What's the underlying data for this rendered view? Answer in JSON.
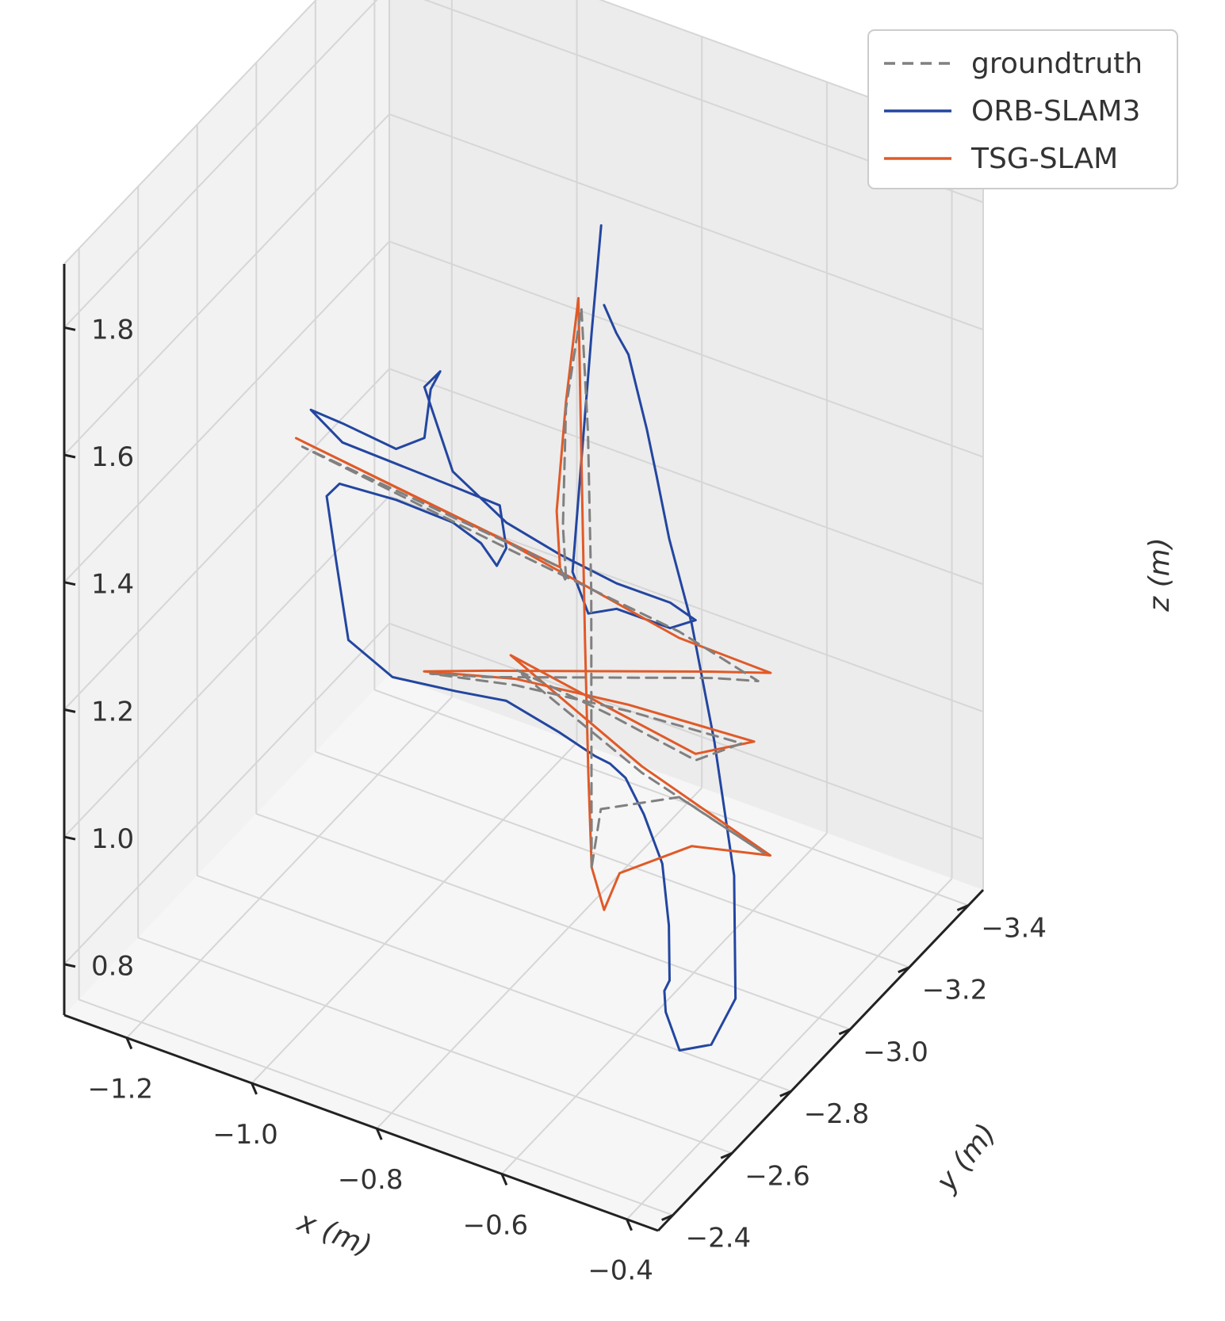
{
  "chart_data": {
    "type": "line",
    "projection": "3d",
    "title": "",
    "xlabel": "x (m)",
    "ylabel": "y (m)",
    "zlabel": "z (m)",
    "xlim": [
      -1.3,
      -0.35
    ],
    "ylim": [
      -3.45,
      -2.35
    ],
    "zlim": [
      0.72,
      1.9
    ],
    "x_ticks": [
      "−1.2",
      "−1.0",
      "−0.8",
      "−0.6",
      "−0.4"
    ],
    "y_ticks": [
      "−2.4",
      "−2.6",
      "−2.8",
      "−3.0",
      "−3.2",
      "−3.4"
    ],
    "z_ticks": [
      "1.8",
      "1.6",
      "1.4",
      "1.2",
      "1.0",
      "0.8"
    ],
    "grid": true,
    "legend_position": "top-right",
    "colors": {
      "groundtruth": "#808080",
      "orb": "#2346a0",
      "tsg": "#e05a28",
      "pane_left": "#ececec",
      "pane_back": "#f2f2f2",
      "pane_floor": "#f6f6f6",
      "grid": "#d6d6d6"
    },
    "series": [
      {
        "name": "groundtruth",
        "style": "dashed",
        "points": [
          [
            -0.74,
            -2.95,
            0.86
          ],
          [
            -0.745,
            -2.96,
            1.05
          ],
          [
            -0.75,
            -2.97,
            1.28
          ],
          [
            -0.76,
            -2.98,
            1.52
          ],
          [
            -0.78,
            -3.0,
            1.7
          ],
          [
            -0.8,
            -2.99,
            1.54
          ],
          [
            -0.8,
            -2.98,
            1.36
          ],
          [
            -0.79,
            -2.97,
            1.28
          ],
          [
            -0.8,
            -2.97,
            1.3
          ],
          [
            -1.25,
            -3.05,
            1.29
          ],
          [
            -0.9,
            -3.0,
            1.28
          ],
          [
            -0.6,
            -2.95,
            1.28
          ],
          [
            -0.45,
            -2.9,
            1.28
          ],
          [
            -0.55,
            -2.96,
            1.22
          ],
          [
            -0.75,
            -3.0,
            1.13
          ],
          [
            -0.95,
            -3.04,
            1.04
          ],
          [
            -1.05,
            -3.06,
            1.0
          ],
          [
            -0.9,
            -3.03,
            1.05
          ],
          [
            -0.7,
            -2.99,
            1.1
          ],
          [
            -0.5,
            -2.95,
            1.14
          ],
          [
            -0.55,
            -2.9,
            1.12
          ],
          [
            -0.7,
            -2.92,
            1.13
          ],
          [
            -0.85,
            -2.93,
            1.14
          ],
          [
            -0.65,
            -2.93,
            1.05
          ],
          [
            -0.45,
            -2.92,
            1.0
          ],
          [
            -0.6,
            -2.95,
            1.02
          ],
          [
            -0.73,
            -2.96,
            0.95
          ],
          [
            -0.74,
            -2.95,
            0.86
          ]
        ]
      },
      {
        "name": "ORB-SLAM3",
        "style": "solid",
        "points": [
          [
            -0.72,
            -2.95,
            1.75
          ],
          [
            -0.71,
            -2.97,
            1.7
          ],
          [
            -0.7,
            -2.99,
            1.66
          ],
          [
            -0.69,
            -3.0,
            1.6
          ],
          [
            -0.68,
            -3.01,
            1.54
          ],
          [
            -0.66,
            -3.0,
            1.48
          ],
          [
            -0.63,
            -2.98,
            1.4
          ],
          [
            -0.58,
            -2.95,
            1.3
          ],
          [
            -0.52,
            -2.9,
            1.16
          ],
          [
            -0.46,
            -2.84,
            1.0
          ],
          [
            -0.42,
            -2.76,
            0.86
          ],
          [
            -0.44,
            -2.72,
            0.8
          ],
          [
            -0.5,
            -2.74,
            0.76
          ],
          [
            -0.56,
            -2.82,
            0.76
          ],
          [
            -0.6,
            -2.9,
            0.74
          ],
          [
            -0.62,
            -2.96,
            0.72
          ],
          [
            -0.64,
            -3.0,
            0.78
          ],
          [
            -0.66,
            -3.02,
            0.86
          ],
          [
            -0.68,
            -3.0,
            0.94
          ],
          [
            -0.7,
            -2.98,
            1.0
          ],
          [
            -0.72,
            -2.97,
            1.02
          ],
          [
            -0.74,
            -2.96,
            1.03
          ],
          [
            -0.8,
            -2.97,
            1.04
          ],
          [
            -0.9,
            -3.0,
            1.04
          ],
          [
            -1.0,
            -3.04,
            1.0
          ],
          [
            -1.12,
            -3.08,
            0.96
          ],
          [
            -1.2,
            -3.1,
            0.98
          ],
          [
            -1.22,
            -3.1,
            1.1
          ],
          [
            -1.23,
            -3.09,
            1.2
          ],
          [
            -1.2,
            -3.07,
            1.24
          ],
          [
            -1.1,
            -3.05,
            1.26
          ],
          [
            -1.0,
            -3.03,
            1.27
          ],
          [
            -0.95,
            -3.02,
            1.26
          ],
          [
            -0.92,
            -3.01,
            1.24
          ],
          [
            -0.9,
            -3.0,
            1.28
          ],
          [
            -0.92,
            -3.02,
            1.33
          ],
          [
            -1.0,
            -3.04,
            1.32
          ],
          [
            -1.1,
            -3.06,
            1.31
          ],
          [
            -1.2,
            -3.08,
            1.3
          ],
          [
            -1.26,
            -3.1,
            1.32
          ],
          [
            -1.2,
            -3.08,
            1.33
          ],
          [
            -1.1,
            -3.05,
            1.34
          ],
          [
            -1.05,
            -3.04,
            1.38
          ],
          [
            -1.04,
            -3.04,
            1.46
          ],
          [
            -1.02,
            -3.03,
            1.5
          ],
          [
            -1.05,
            -3.04,
            1.46
          ],
          [
            -1.0,
            -3.03,
            1.35
          ],
          [
            -0.9,
            -3.0,
            1.32
          ],
          [
            -0.8,
            -2.97,
            1.32
          ],
          [
            -0.7,
            -2.95,
            1.32
          ],
          [
            -0.6,
            -2.92,
            1.34
          ],
          [
            -0.55,
            -2.9,
            1.34
          ],
          [
            -0.6,
            -2.92,
            1.3
          ],
          [
            -0.7,
            -2.95,
            1.28
          ],
          [
            -0.75,
            -2.96,
            1.25
          ],
          [
            -0.78,
            -2.97,
            1.3
          ],
          [
            -0.76,
            -2.96,
            1.5
          ],
          [
            -0.74,
            -2.95,
            1.7
          ],
          [
            -0.72,
            -2.94,
            1.88
          ]
        ]
      },
      {
        "name": "TSG-SLAM",
        "style": "solid",
        "points": [
          [
            -0.74,
            -2.95,
            0.86
          ],
          [
            -0.75,
            -2.96,
            1.0
          ],
          [
            -0.76,
            -2.97,
            1.2
          ],
          [
            -0.77,
            -2.98,
            1.45
          ],
          [
            -0.78,
            -2.99,
            1.72
          ],
          [
            -0.8,
            -2.99,
            1.55
          ],
          [
            -0.81,
            -2.98,
            1.38
          ],
          [
            -0.8,
            -2.97,
            1.3
          ],
          [
            -1.26,
            -3.05,
            1.3
          ],
          [
            -0.9,
            -3.0,
            1.29
          ],
          [
            -0.6,
            -2.95,
            1.27
          ],
          [
            -0.43,
            -2.9,
            1.3
          ],
          [
            -0.55,
            -2.96,
            1.23
          ],
          [
            -0.75,
            -3.0,
            1.14
          ],
          [
            -0.95,
            -3.04,
            1.05
          ],
          [
            -1.06,
            -3.06,
            1.0
          ],
          [
            -0.9,
            -3.03,
            1.06
          ],
          [
            -0.7,
            -2.99,
            1.11
          ],
          [
            -0.48,
            -2.95,
            1.15
          ],
          [
            -0.55,
            -2.9,
            1.13
          ],
          [
            -0.7,
            -2.92,
            1.14
          ],
          [
            -0.86,
            -2.93,
            1.16
          ],
          [
            -0.65,
            -2.93,
            1.06
          ],
          [
            -0.44,
            -2.92,
            1.0
          ],
          [
            -0.58,
            -2.95,
            0.95
          ],
          [
            -0.7,
            -2.96,
            0.86
          ],
          [
            -0.72,
            -2.95,
            0.8
          ],
          [
            -0.74,
            -2.95,
            0.86
          ]
        ]
      }
    ]
  }
}
